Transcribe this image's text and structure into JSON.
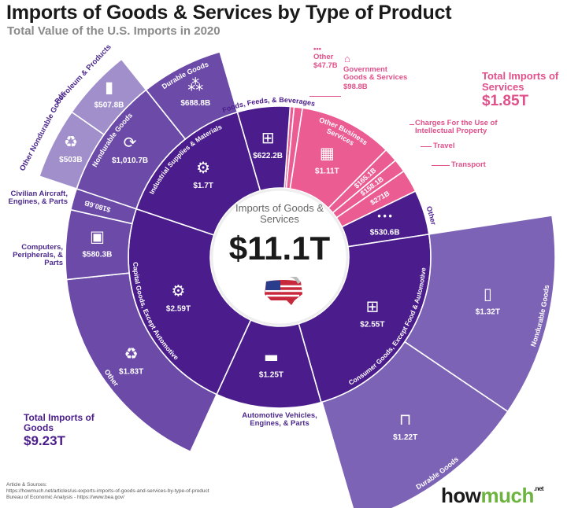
{
  "title": "Imports of Goods & Services by Type of Product",
  "subtitle": "Total Value of the U.S. Imports in 2020",
  "totals": {
    "goods": {
      "label": "Total Imports of Goods",
      "value": "$9.23T"
    },
    "services": {
      "label": "Total Imports of Services",
      "value": "$1.85T"
    }
  },
  "sources": {
    "heading": "Article & Sources:",
    "lines": [
      "https://howmuch.net/articles/us-exports-imports-of-goods-and-services-by-type-of-product",
      "Bureau of Economic Analysis - https://www.bea.gov/"
    ]
  },
  "logo": {
    "part1": "how",
    "part2": "much",
    "suffix": ".net"
  },
  "chart_data": {
    "type": "sunburst",
    "title": "Imports of Goods & Services by Type of Product",
    "subtitle": "Total Value of the U.S. Imports in 2020",
    "center": {
      "label": "Imports of Goods & Services",
      "value": "$11.1T",
      "icon": "usa-flag-map-icon"
    },
    "colors": {
      "goods_ring1": "#4b1d8c",
      "goods_ring2": "#6c4aa8",
      "goods_ring3": "#a08fcb",
      "consumer_outer": "#7d63b6",
      "services": "#ea5c92",
      "services_text": "#e0508a",
      "logo_green": "#6cb33f"
    },
    "segments": [
      {
        "name": "Other",
        "value": 47.7,
        "label": "$47.7B",
        "group": "services",
        "icon": "more-icon"
      },
      {
        "name": "Government Goods & Services",
        "value": 98.8,
        "label": "$98.8B",
        "group": "services",
        "icon": "government-building-icon"
      },
      {
        "name": "Other Business Services",
        "value": 1110,
        "label": "$1.11T",
        "group": "services",
        "icon": "office-building-icon"
      },
      {
        "name": "Charges For the Use of Intellectual Property",
        "value": 165.1,
        "label": "$165.1B",
        "group": "services",
        "icon": "copyright-icon"
      },
      {
        "name": "Travel",
        "value": 158.1,
        "label": "$158.1B",
        "group": "services",
        "icon": "travel-icon"
      },
      {
        "name": "Transport",
        "value": 271,
        "label": "$271B",
        "group": "services",
        "icon": "transport-icon"
      },
      {
        "name": "Other",
        "value": 530.6,
        "label": "$530.6B",
        "group": "goods",
        "icon": "more-icon"
      },
      {
        "name": "Consumer Goods, Except Food & Automotive",
        "value": 2550,
        "label": "$2.55T",
        "group": "goods",
        "icon": "shopping-basket-icon",
        "children": [
          {
            "name": "Nondurable Goods",
            "value": 1320,
            "label": "$1.32T",
            "icon": "bottle-icon"
          },
          {
            "name": "Durable Goods",
            "value": 1220,
            "label": "$1.22T",
            "icon": "furniture-icon"
          }
        ]
      },
      {
        "name": "Automotive Vehicles, Engines, & Parts",
        "value": 1250,
        "label": "$1.25T",
        "group": "goods",
        "icon": "car-icon"
      },
      {
        "name": "Capital Goods, Except Automotive",
        "value": 2590,
        "label": "$2.59T",
        "group": "goods",
        "icon": "pulley-icon",
        "children": [
          {
            "name": "Other",
            "value": 1830,
            "label": "$1.83T",
            "icon": "recycle-icon"
          },
          {
            "name": "Computers, Peripherals, & Parts",
            "value": 580.3,
            "label": "$580.3B",
            "icon": "computer-icon"
          },
          {
            "name": "Civilian Aircraft, Engines, & Parts",
            "value": 180.6,
            "label": "$180.6B",
            "icon": "airplane-icon"
          }
        ]
      },
      {
        "name": "Industrial Supplies & Materials",
        "value": 1700,
        "label": "$1.7T",
        "group": "goods",
        "icon": "factory-gear-icon",
        "children": [
          {
            "name": "Nondurable Goods",
            "value": 1010.7,
            "label": "$1,010.7B",
            "icon": "cycle-gear-icon",
            "children": [
              {
                "name": "Other Nondurable Goods",
                "value": 503,
                "label": "$503B",
                "icon": "recycle-icon"
              },
              {
                "name": "Petroleum & Products",
                "value": 507.8,
                "label": "$507.8B",
                "icon": "oil-barrel-icon"
              }
            ]
          },
          {
            "name": "Durable Goods",
            "value": 688.8,
            "label": "$688.8B",
            "icon": "materials-icon"
          }
        ]
      },
      {
        "name": "Foods, Feeds, & Beverages",
        "value": 622.2,
        "label": "$622.2B",
        "group": "goods",
        "icon": "food-basket-icon"
      }
    ]
  }
}
